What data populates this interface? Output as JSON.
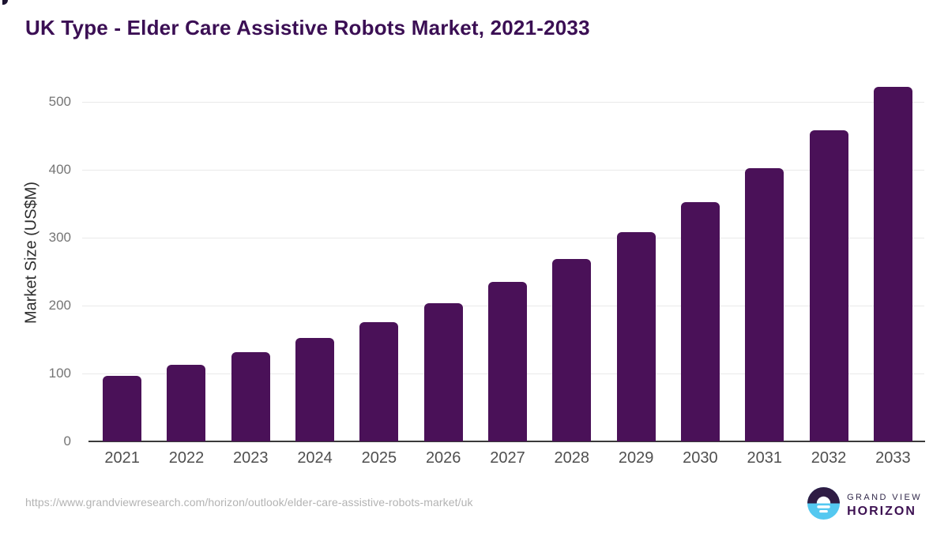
{
  "title": "UK Type - Elder Care Assistive Robots Market, 2021-2033",
  "source_url": "https://www.grandviewresearch.com/horizon/outlook/elder-care-assistive-robots-market/uk",
  "logo": {
    "icon": "sunrise-circle-icon",
    "line1": "GRAND VIEW",
    "line2": "HORIZON"
  },
  "colors": {
    "title": "#3b0f54",
    "bar": "#4a1158",
    "gridline": "#e9e9e9",
    "axis_line": "#3a3a3a",
    "y_tick_label": "#757575",
    "x_tick_label": "#4f4f4f",
    "y_axis_title": "#2d2d2d",
    "url_text": "#b3b3b3",
    "logo_top_half": "#2f1c44",
    "logo_bottom_half": "#54c8f0"
  },
  "chart_data": {
    "type": "bar",
    "title": "UK Type - Elder Care Assistive Robots Market, 2021-2033",
    "categories": [
      "2021",
      "2022",
      "2023",
      "2024",
      "2025",
      "2026",
      "2027",
      "2028",
      "2029",
      "2030",
      "2031",
      "2032",
      "2033"
    ],
    "values": [
      97,
      113,
      132,
      152,
      176,
      204,
      235,
      269,
      308,
      353,
      402,
      458,
      522
    ],
    "xlabel": "",
    "ylabel": "Market Size (US$M)",
    "yticks": [
      0,
      100,
      200,
      300,
      400,
      500
    ],
    "ylim": [
      0,
      534
    ],
    "grid": true,
    "legend": false,
    "bar_color": "#4a1158"
  }
}
